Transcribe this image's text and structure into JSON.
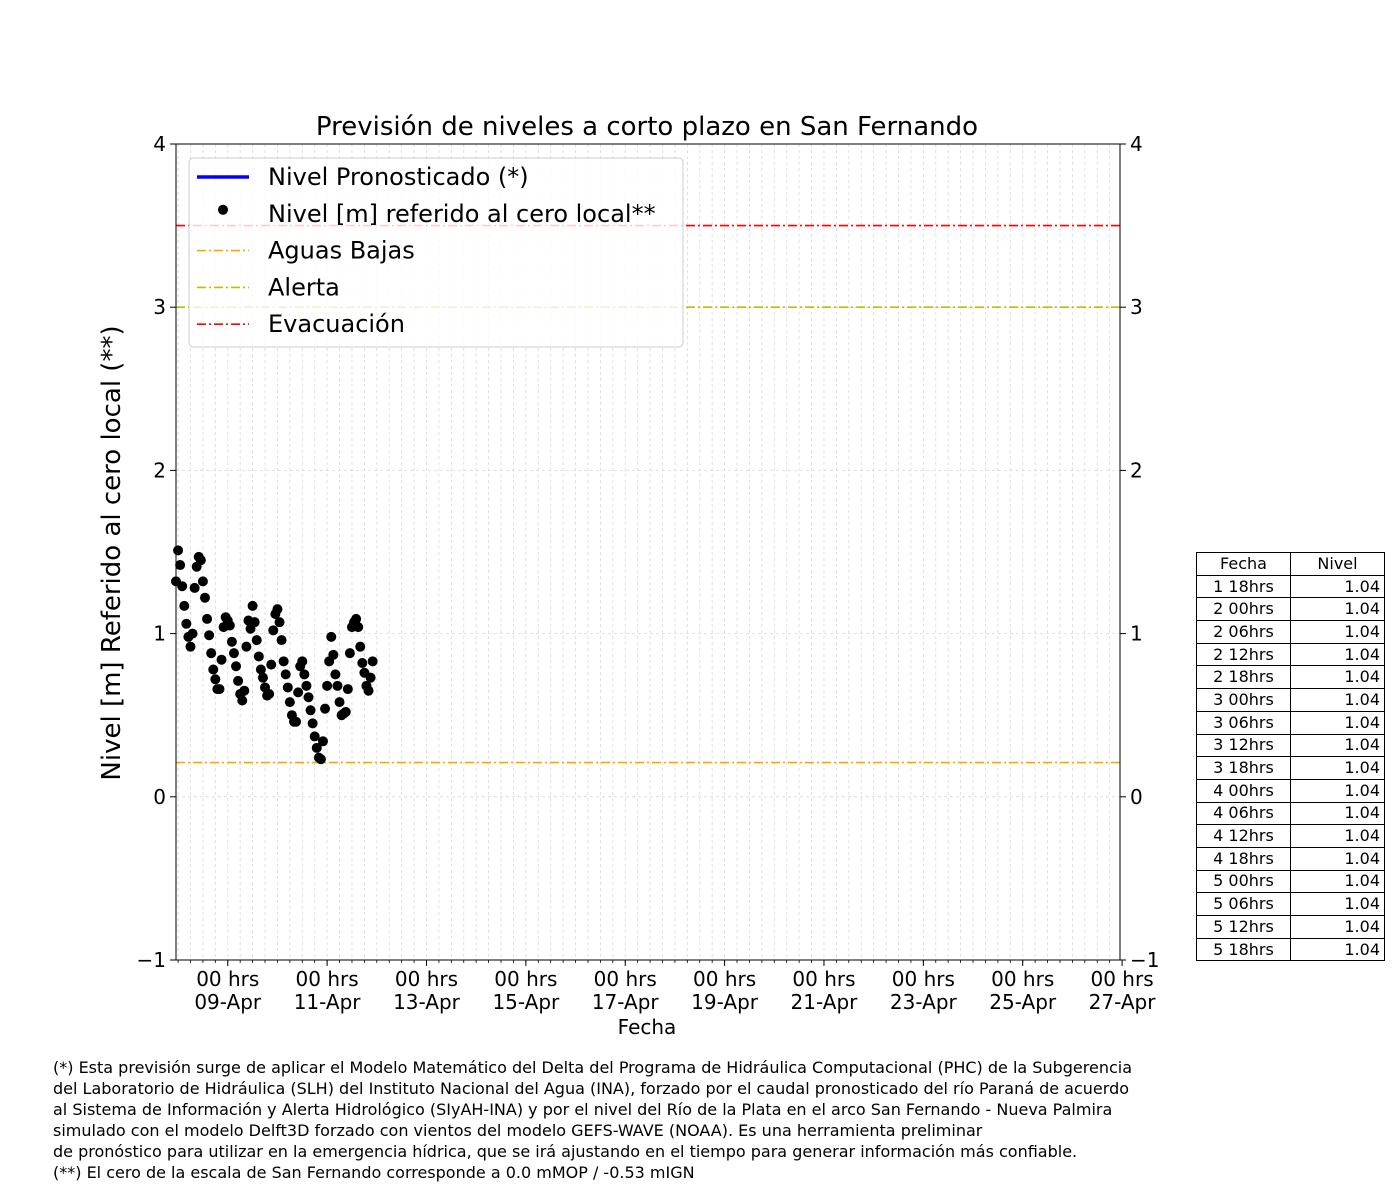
{
  "chart_data": {
    "type": "scatter",
    "title": "Previsión de niveles a corto plazo en San Fernando",
    "xlabel": "Fecha",
    "ylabel": "Nivel [m] Referido al cero local (**)",
    "xlim": [
      "2024-04-07 23:00",
      "2024-04-26 23:00"
    ],
    "ylim": [
      -1,
      4
    ],
    "yticks": [
      -1,
      0,
      1,
      2,
      3,
      4
    ],
    "ytick_labels": [
      "−1",
      "0",
      "1",
      "2",
      "3",
      "4"
    ],
    "xticks": [
      "2024-04-09 00:00",
      "2024-04-11 00:00",
      "2024-04-13 00:00",
      "2024-04-15 00:00",
      "2024-04-17 00:00",
      "2024-04-19 00:00",
      "2024-04-21 00:00",
      "2024-04-23 00:00",
      "2024-04-25 00:00",
      "2024-04-27 00:00"
    ],
    "xtick_labels_top": [
      "00 hrs",
      "00 hrs",
      "00 hrs",
      "00 hrs",
      "00 hrs",
      "00 hrs",
      "00 hrs",
      "00 hrs",
      "00 hrs",
      "00 hrs"
    ],
    "xtick_labels_bottom": [
      "09-Apr",
      "11-Apr",
      "13-Apr",
      "15-Apr",
      "17-Apr",
      "19-Apr",
      "21-Apr",
      "23-Apr",
      "25-Apr",
      "27-Apr"
    ],
    "grid": true,
    "legend_position": "top-left",
    "legend": [
      {
        "label": "Nivel Pronosticado (*)",
        "style": "solid-line",
        "color": "#0000ff"
      },
      {
        "label": "Nivel [m] referido al cero local**",
        "style": "dot",
        "color": "#000000"
      },
      {
        "label": "Aguas Bajas",
        "style": "dashdot",
        "color": "#ffa500"
      },
      {
        "label": "Alerta",
        "style": "dashdot",
        "color": "#bfbf00"
      },
      {
        "label": "Evacuación",
        "style": "dashdot",
        "color": "#ff0000"
      }
    ],
    "thresholds": [
      {
        "name": "Aguas Bajas",
        "y": 0.21,
        "color": "#ffa500"
      },
      {
        "name": "Alerta",
        "y": 3.0,
        "color": "#bfbf00"
      },
      {
        "name": "Evacuación",
        "y": 3.5,
        "color": "#ff0000"
      }
    ],
    "series": [
      {
        "name": "Nivel [m] referido al cero local**",
        "color": "#000000",
        "points": [
          [
            "2024-04-07 23:00",
            1.32
          ],
          [
            "2024-04-08 00:00",
            1.51
          ],
          [
            "2024-04-08 01:00",
            1.42
          ],
          [
            "2024-04-08 02:00",
            1.29
          ],
          [
            "2024-04-08 03:00",
            1.17
          ],
          [
            "2024-04-08 04:00",
            1.06
          ],
          [
            "2024-04-08 05:00",
            0.98
          ],
          [
            "2024-04-08 06:00",
            0.92
          ],
          [
            "2024-04-08 07:00",
            1.0
          ],
          [
            "2024-04-08 08:00",
            1.28
          ],
          [
            "2024-04-08 09:00",
            1.41
          ],
          [
            "2024-04-08 10:00",
            1.47
          ],
          [
            "2024-04-08 11:00",
            1.45
          ],
          [
            "2024-04-08 12:00",
            1.32
          ],
          [
            "2024-04-08 13:00",
            1.22
          ],
          [
            "2024-04-08 14:00",
            1.09
          ],
          [
            "2024-04-08 15:00",
            0.99
          ],
          [
            "2024-04-08 16:00",
            0.88
          ],
          [
            "2024-04-08 17:00",
            0.78
          ],
          [
            "2024-04-08 18:00",
            0.72
          ],
          [
            "2024-04-08 19:00",
            0.66
          ],
          [
            "2024-04-08 20:00",
            0.66
          ],
          [
            "2024-04-08 21:00",
            0.84
          ],
          [
            "2024-04-08 22:00",
            1.04
          ],
          [
            "2024-04-08 23:00",
            1.1
          ],
          [
            "2024-04-09 00:00",
            1.08
          ],
          [
            "2024-04-09 01:00",
            1.05
          ],
          [
            "2024-04-09 02:00",
            0.95
          ],
          [
            "2024-04-09 03:00",
            0.88
          ],
          [
            "2024-04-09 04:00",
            0.8
          ],
          [
            "2024-04-09 05:00",
            0.71
          ],
          [
            "2024-04-09 06:00",
            0.63
          ],
          [
            "2024-04-09 07:00",
            0.59
          ],
          [
            "2024-04-09 08:00",
            0.65
          ],
          [
            "2024-04-09 09:00",
            0.92
          ],
          [
            "2024-04-09 10:00",
            1.08
          ],
          [
            "2024-04-09 11:00",
            1.03
          ],
          [
            "2024-04-09 12:00",
            1.17
          ],
          [
            "2024-04-09 13:00",
            1.07
          ],
          [
            "2024-04-09 14:00",
            0.96
          ],
          [
            "2024-04-09 15:00",
            0.86
          ],
          [
            "2024-04-09 16:00",
            0.78
          ],
          [
            "2024-04-09 17:00",
            0.73
          ],
          [
            "2024-04-09 18:00",
            0.67
          ],
          [
            "2024-04-09 19:00",
            0.62
          ],
          [
            "2024-04-09 20:00",
            0.63
          ],
          [
            "2024-04-09 21:00",
            0.81
          ],
          [
            "2024-04-09 22:00",
            1.02
          ],
          [
            "2024-04-09 23:00",
            1.12
          ],
          [
            "2024-04-10 00:00",
            1.15
          ],
          [
            "2024-04-10 01:00",
            1.07
          ],
          [
            "2024-04-10 02:00",
            0.96
          ],
          [
            "2024-04-10 03:00",
            0.83
          ],
          [
            "2024-04-10 04:00",
            0.75
          ],
          [
            "2024-04-10 05:00",
            0.67
          ],
          [
            "2024-04-10 06:00",
            0.58
          ],
          [
            "2024-04-10 07:00",
            0.5
          ],
          [
            "2024-04-10 08:00",
            0.46
          ],
          [
            "2024-04-10 09:00",
            0.46
          ],
          [
            "2024-04-10 10:00",
            0.64
          ],
          [
            "2024-04-10 11:00",
            0.8
          ],
          [
            "2024-04-10 12:00",
            0.83
          ],
          [
            "2024-04-10 13:00",
            0.75
          ],
          [
            "2024-04-10 14:00",
            0.68
          ],
          [
            "2024-04-10 15:00",
            0.61
          ],
          [
            "2024-04-10 16:00",
            0.53
          ],
          [
            "2024-04-10 17:00",
            0.45
          ],
          [
            "2024-04-10 18:00",
            0.37
          ],
          [
            "2024-04-10 19:00",
            0.3
          ],
          [
            "2024-04-10 20:00",
            0.24
          ],
          [
            "2024-04-10 21:00",
            0.23
          ],
          [
            "2024-04-10 22:00",
            0.34
          ],
          [
            "2024-04-10 23:00",
            0.54
          ],
          [
            "2024-04-11 00:00",
            0.68
          ],
          [
            "2024-04-11 01:00",
            0.83
          ],
          [
            "2024-04-11 02:00",
            0.98
          ],
          [
            "2024-04-11 03:00",
            0.87
          ],
          [
            "2024-04-11 04:00",
            0.75
          ],
          [
            "2024-04-11 05:00",
            0.68
          ],
          [
            "2024-04-11 06:00",
            0.58
          ],
          [
            "2024-04-11 07:00",
            0.5
          ],
          [
            "2024-04-11 08:00",
            0.51
          ],
          [
            "2024-04-11 09:00",
            0.52
          ],
          [
            "2024-04-11 10:00",
            0.66
          ],
          [
            "2024-04-11 11:00",
            0.88
          ],
          [
            "2024-04-11 12:00",
            1.04
          ],
          [
            "2024-04-11 13:00",
            1.07
          ],
          [
            "2024-04-11 14:00",
            1.09
          ],
          [
            "2024-04-11 15:00",
            1.04
          ],
          [
            "2024-04-11 16:00",
            0.92
          ],
          [
            "2024-04-11 17:00",
            0.82
          ],
          [
            "2024-04-11 18:00",
            0.76
          ],
          [
            "2024-04-11 19:00",
            0.68
          ],
          [
            "2024-04-11 20:00",
            0.65
          ],
          [
            "2024-04-11 21:00",
            0.73
          ],
          [
            "2024-04-11 22:00",
            0.83
          ]
        ]
      }
    ]
  },
  "table": {
    "headers": [
      "Fecha",
      "Nivel"
    ],
    "rows": [
      [
        "1 18hrs",
        "1.04"
      ],
      [
        "2 00hrs",
        "1.04"
      ],
      [
        "2 06hrs",
        "1.04"
      ],
      [
        "2 12hrs",
        "1.04"
      ],
      [
        "2 18hrs",
        "1.04"
      ],
      [
        "3 00hrs",
        "1.04"
      ],
      [
        "3 06hrs",
        "1.04"
      ],
      [
        "3 12hrs",
        "1.04"
      ],
      [
        "3 18hrs",
        "1.04"
      ],
      [
        "4 00hrs",
        "1.04"
      ],
      [
        "4 06hrs",
        "1.04"
      ],
      [
        "4 12hrs",
        "1.04"
      ],
      [
        "4 18hrs",
        "1.04"
      ],
      [
        "5 00hrs",
        "1.04"
      ],
      [
        "5 06hrs",
        "1.04"
      ],
      [
        "5 12hrs",
        "1.04"
      ],
      [
        "5 18hrs",
        "1.04"
      ]
    ]
  },
  "footnote": {
    "lines": [
      "(*) Esta previsión surge de aplicar el Modelo Matemático del Delta del Programa de Hidráulica Computacional (PHC) de la Subgerencia",
      "del Laboratorio de Hidráulica (SLH) del Instituto Nacional del Agua (INA), forzado por el caudal pronosticado del río Paraná de acuerdo",
      "al Sistema de Información y Alerta Hidrológico (SIyAH-INA) y por el nivel del Río de la Plata en el arco San Fernando - Nueva Palmira",
      "simulado con el modelo Delft3D forzado con vientos del modelo GEFS-WAVE (NOAA). Es una herramienta preliminar",
      "de pronóstico para utilizar en la emergencia hídrica, que se irá ajustando en el tiempo para generar información más confiable.",
      "(**) El cero de la escala de San Fernando corresponde a 0.0 mMOP / -0.53 mIGN"
    ]
  }
}
